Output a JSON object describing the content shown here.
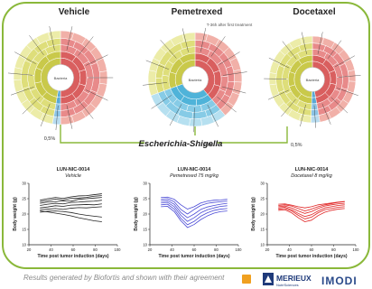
{
  "sunbursts": [
    {
      "title": "Vehicle",
      "subtitle": "",
      "center_label": "Bacteria"
    },
    {
      "title": "Pemetrexed",
      "subtitle": "T-36h after first treatment",
      "center_label": "Bacteria"
    },
    {
      "title": "Docetaxel",
      "subtitle": "",
      "center_label": "Bacteria"
    }
  ],
  "genus_callout": {
    "label": "Escherichia-Shigella",
    "percentages": [
      "0,5%",
      "20%",
      "0,5%"
    ]
  },
  "charts": [
    {
      "model": "LUN-NIC-0014",
      "treatment": "Vehicle",
      "color": "#222222",
      "chart_data": {
        "type": "line",
        "title": "LUN-NIC-0014 Vehicle",
        "xlabel": "Time post tumor induction (days)",
        "ylabel": "Body weight (g)",
        "xlim": [
          20,
          100
        ],
        "ylim": [
          10,
          30
        ],
        "xticks": [
          20,
          40,
          60,
          80,
          100
        ],
        "yticks": [
          10,
          15,
          20,
          25,
          30
        ],
        "x": [
          30,
          37,
          44,
          51,
          58,
          65,
          72,
          79,
          86
        ],
        "series": [
          {
            "values": [
              24.5,
              25.0,
              25.4,
              25.1,
              25.6,
              25.9,
              26.0,
              26.3,
              26.6
            ]
          },
          {
            "values": [
              24.0,
              24.4,
              24.9,
              24.6,
              25.1,
              25.2,
              25.4,
              25.8,
              26.0
            ]
          },
          {
            "values": [
              23.5,
              23.9,
              24.0,
              24.3,
              24.2,
              24.8,
              25.0,
              25.2,
              25.4
            ]
          },
          {
            "values": [
              22.8,
              23.2,
              23.5,
              23.3,
              23.8,
              23.9,
              24.1,
              24.2,
              24.5
            ]
          },
          {
            "values": [
              22.0,
              22.3,
              22.7,
              22.5,
              22.9,
              23.0,
              23.1,
              23.0,
              23.3
            ]
          },
          {
            "values": [
              21.4,
              21.6,
              21.8,
              21.5,
              21.9,
              22.1,
              22.0,
              22.2,
              22.4
            ]
          },
          {
            "values": [
              20.6,
              20.9,
              21.0,
              20.8,
              20.5,
              20.0,
              19.6,
              19.3,
              19.0
            ]
          },
          {
            "values": [
              21.0,
              20.7,
              20.3,
              19.9,
              19.4,
              18.8,
              18.3,
              17.8,
              17.5
            ]
          }
        ]
      }
    },
    {
      "model": "LUN-NIC-0014",
      "treatment": "Pemetrexed 75 mg/kg",
      "color": "#4a4ad6",
      "chart_data": {
        "type": "line",
        "title": "LUN-NIC-0014 Pemetrexed 75 mg/kg",
        "xlabel": "Time post tumor induction (days)",
        "ylabel": "Body weight (g)",
        "xlim": [
          20,
          100
        ],
        "ylim": [
          10,
          30
        ],
        "xticks": [
          20,
          40,
          60,
          80,
          100
        ],
        "yticks": [
          10,
          15,
          20,
          25,
          30
        ],
        "x": [
          30,
          36,
          42,
          48,
          54,
          60,
          66,
          72,
          78,
          84,
          90
        ],
        "series": [
          {
            "values": [
              24.8,
              25.0,
              24.0,
              21.5,
              20.0,
              21.5,
              22.8,
              23.5,
              23.8,
              24.0,
              24.2
            ]
          },
          {
            "values": [
              24.2,
              24.4,
              23.2,
              20.5,
              18.8,
              20.0,
              21.5,
              22.3,
              22.8,
              23.2,
              23.5
            ]
          },
          {
            "values": [
              23.6,
              23.8,
              22.4,
              19.6,
              17.6,
              18.8,
              20.4,
              21.4,
              22.0,
              22.5,
              22.7
            ]
          },
          {
            "values": [
              23.0,
              23.2,
              21.6,
              18.6,
              16.5,
              17.6,
              19.3,
              20.4,
              21.2,
              21.6,
              21.8
            ]
          },
          {
            "values": [
              22.4,
              22.5,
              20.8,
              17.8,
              15.6,
              16.6,
              18.2,
              19.4,
              20.3,
              20.8,
              21.0
            ]
          },
          {
            "values": [
              25.4,
              25.5,
              24.8,
              23.0,
              21.6,
              22.4,
              23.6,
              24.2,
              24.5,
              24.6,
              24.8
            ]
          }
        ]
      }
    },
    {
      "model": "LUN-NIC-0014",
      "treatment": "Docetaxel 8 mg/kg",
      "color": "#e02424",
      "chart_data": {
        "type": "line",
        "title": "LUN-NIC-0014 Docetaxel 8 mg/kg",
        "xlabel": "Time post tumor induction (days)",
        "ylabel": "Body weight (g)",
        "xlim": [
          20,
          100
        ],
        "ylim": [
          10,
          30
        ],
        "xticks": [
          20,
          40,
          60,
          80,
          100
        ],
        "yticks": [
          10,
          15,
          20,
          25,
          30
        ],
        "x": [
          30,
          36,
          42,
          48,
          54,
          60,
          66,
          72,
          78,
          84,
          90
        ],
        "series": [
          {
            "values": [
              22.8,
              23.0,
              22.6,
              21.8,
              21.0,
              21.6,
              22.4,
              23.0,
              23.4,
              23.8,
              24.0
            ]
          },
          {
            "values": [
              22.4,
              22.6,
              22.0,
              21.0,
              20.2,
              20.8,
              21.8,
              22.6,
              23.0,
              23.3,
              23.5
            ]
          },
          {
            "values": [
              22.0,
              22.2,
              21.4,
              20.2,
              19.2,
              19.8,
              21.0,
              22.0,
              22.4,
              22.8,
              23.0
            ]
          },
          {
            "values": [
              21.6,
              21.8,
              21.0,
              19.6,
              18.4,
              19.0,
              20.4,
              21.4,
              21.8,
              22.2,
              22.4
            ]
          },
          {
            "values": [
              21.2,
              21.4,
              20.4,
              18.8,
              17.5,
              18.0,
              19.5,
              20.6,
              21.2,
              21.6,
              21.8
            ]
          },
          {
            "values": [
              23.2,
              23.3,
              22.9,
              22.4,
              22.0,
              22.4,
              23.0,
              23.3,
              23.6,
              23.9,
              24.1
            ]
          }
        ]
      }
    }
  ],
  "footer": {
    "credit": "Results generated by Biofortis and shown with their agreement",
    "logo_merieux": "MERIEUX",
    "logo_merieux_sub": "NutriSciences",
    "logo_imodi": "IMODI"
  },
  "colors": {
    "panel_border": "#8ab83a",
    "connector": "#8ab83a",
    "footer_text": "#8a8a8a"
  }
}
